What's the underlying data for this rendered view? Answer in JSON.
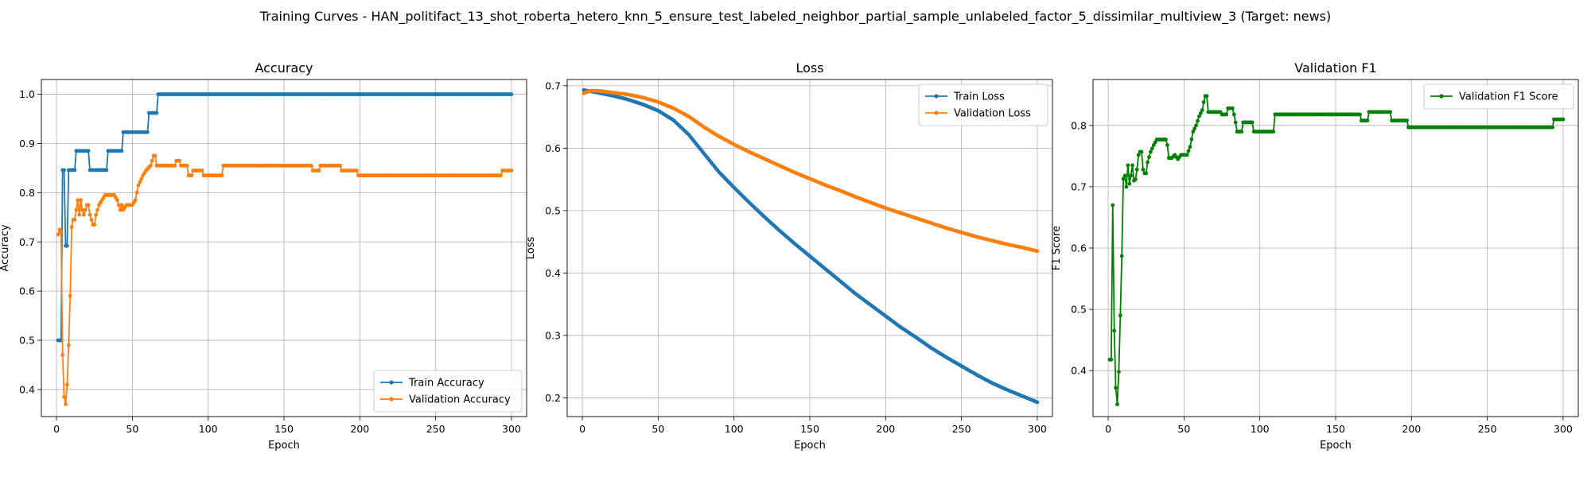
{
  "figure": {
    "title": "Training Curves - HAN_politifact_13_shot_roberta_hetero_knn_5_ensure_test_labeled_neighbor_partial_sample_unlabeled_factor_5_dissimilar_multiview_3 (Target: news)"
  },
  "chart_data": [
    {
      "type": "line",
      "title": "Accuracy",
      "xlabel": "Epoch",
      "ylabel": "Accuracy",
      "xlim": [
        -10,
        310
      ],
      "ylim": [
        0.345,
        1.03
      ],
      "xticks": [
        0,
        50,
        100,
        150,
        200,
        250,
        300
      ],
      "yticks": [
        0.4,
        0.5,
        0.6,
        0.7,
        0.8,
        0.9,
        1.0
      ],
      "ytick_labels": [
        "0.4",
        "0.5",
        "0.6",
        "0.7",
        "0.8",
        "0.9",
        "1.0"
      ],
      "grid": true,
      "legend_position": "lower-right",
      "series": [
        {
          "name": "Train Accuracy",
          "color": "#1f77b4",
          "points": [
            [
              1,
              0.5
            ],
            [
              3,
              0.5
            ],
            [
              4,
              0.846
            ],
            [
              5,
              0.846
            ],
            [
              6,
              0.692
            ],
            [
              7,
              0.692
            ],
            [
              8,
              0.846
            ],
            [
              12,
              0.846
            ],
            [
              13,
              0.885
            ],
            [
              21,
              0.885
            ],
            [
              22,
              0.846
            ],
            [
              33,
              0.846
            ],
            [
              34,
              0.885
            ],
            [
              43,
              0.885
            ],
            [
              44,
              0.923
            ],
            [
              60,
              0.923
            ],
            [
              61,
              0.962
            ],
            [
              66,
              0.962
            ],
            [
              67,
              1.0
            ],
            [
              300,
              1.0
            ]
          ]
        },
        {
          "name": "Validation Accuracy",
          "color": "#ff7f0e",
          "points": [
            [
              1,
              0.715
            ],
            [
              2,
              0.725
            ],
            [
              3,
              0.72
            ],
            [
              4,
              0.47
            ],
            [
              5,
              0.385
            ],
            [
              6,
              0.37
            ],
            [
              7,
              0.41
            ],
            [
              8,
              0.49
            ],
            [
              9,
              0.59
            ],
            [
              10,
              0.73
            ],
            [
              11,
              0.745
            ],
            [
              12,
              0.745
            ],
            [
              13,
              0.765
            ],
            [
              14,
              0.785
            ],
            [
              15,
              0.755
            ],
            [
              16,
              0.785
            ],
            [
              17,
              0.765
            ],
            [
              18,
              0.755
            ],
            [
              19,
              0.765
            ],
            [
              20,
              0.775
            ],
            [
              21,
              0.775
            ],
            [
              22,
              0.755
            ],
            [
              23,
              0.745
            ],
            [
              24,
              0.735
            ],
            [
              25,
              0.735
            ],
            [
              26,
              0.755
            ],
            [
              28,
              0.775
            ],
            [
              30,
              0.785
            ],
            [
              32,
              0.795
            ],
            [
              38,
              0.795
            ],
            [
              40,
              0.785
            ],
            [
              41,
              0.775
            ],
            [
              42,
              0.765
            ],
            [
              43,
              0.775
            ],
            [
              44,
              0.765
            ],
            [
              46,
              0.775
            ],
            [
              50,
              0.775
            ],
            [
              52,
              0.785
            ],
            [
              54,
              0.815
            ],
            [
              57,
              0.835
            ],
            [
              59,
              0.845
            ],
            [
              62,
              0.855
            ],
            [
              64,
              0.875
            ],
            [
              65,
              0.875
            ],
            [
              66,
              0.855
            ],
            [
              78,
              0.855
            ],
            [
              79,
              0.865
            ],
            [
              81,
              0.865
            ],
            [
              82,
              0.855
            ],
            [
              86,
              0.855
            ],
            [
              87,
              0.835
            ],
            [
              89,
              0.835
            ],
            [
              90,
              0.845
            ],
            [
              96,
              0.845
            ],
            [
              97,
              0.835
            ],
            [
              109,
              0.835
            ],
            [
              110,
              0.855
            ],
            [
              168,
              0.855
            ],
            [
              169,
              0.845
            ],
            [
              173,
              0.845
            ],
            [
              174,
              0.855
            ],
            [
              187,
              0.855
            ],
            [
              188,
              0.845
            ],
            [
              198,
              0.845
            ],
            [
              199,
              0.835
            ],
            [
              293,
              0.835
            ],
            [
              294,
              0.845
            ],
            [
              300,
              0.845
            ]
          ]
        }
      ]
    },
    {
      "type": "line",
      "title": "Loss",
      "xlabel": "Epoch",
      "ylabel": "Loss",
      "xlim": [
        -10,
        310
      ],
      "ylim": [
        0.17,
        0.71
      ],
      "xticks": [
        0,
        50,
        100,
        150,
        200,
        250,
        300
      ],
      "yticks": [
        0.2,
        0.3,
        0.4,
        0.5,
        0.6,
        0.7
      ],
      "ytick_labels": [
        "0.2",
        "0.3",
        "0.4",
        "0.5",
        "0.6",
        "0.7"
      ],
      "grid": true,
      "legend_position": "upper-right",
      "series": [
        {
          "name": "Train Loss",
          "color": "#1f77b4",
          "points": [
            [
              1,
              0.693
            ],
            [
              10,
              0.689
            ],
            [
              20,
              0.684
            ],
            [
              30,
              0.678
            ],
            [
              40,
              0.67
            ],
            [
              50,
              0.66
            ],
            [
              60,
              0.645
            ],
            [
              70,
              0.622
            ],
            [
              80,
              0.592
            ],
            [
              90,
              0.562
            ],
            [
              100,
              0.537
            ],
            [
              110,
              0.513
            ],
            [
              120,
              0.49
            ],
            [
              130,
              0.468
            ],
            [
              140,
              0.447
            ],
            [
              150,
              0.427
            ],
            [
              160,
              0.407
            ],
            [
              170,
              0.387
            ],
            [
              180,
              0.367
            ],
            [
              190,
              0.349
            ],
            [
              200,
              0.331
            ],
            [
              210,
              0.313
            ],
            [
              220,
              0.297
            ],
            [
              230,
              0.28
            ],
            [
              240,
              0.265
            ],
            [
              250,
              0.251
            ],
            [
              260,
              0.237
            ],
            [
              270,
              0.224
            ],
            [
              280,
              0.213
            ],
            [
              290,
              0.203
            ],
            [
              300,
              0.193
            ]
          ]
        },
        {
          "name": "Validation Loss",
          "color": "#ff7f0e",
          "points": [
            [
              1,
              0.688
            ],
            [
              5,
              0.692
            ],
            [
              10,
              0.692
            ],
            [
              20,
              0.689
            ],
            [
              30,
              0.686
            ],
            [
              40,
              0.681
            ],
            [
              50,
              0.674
            ],
            [
              60,
              0.664
            ],
            [
              70,
              0.651
            ],
            [
              80,
              0.634
            ],
            [
              90,
              0.619
            ],
            [
              100,
              0.606
            ],
            [
              110,
              0.594
            ],
            [
              120,
              0.583
            ],
            [
              130,
              0.572
            ],
            [
              140,
              0.561
            ],
            [
              150,
              0.551
            ],
            [
              160,
              0.541
            ],
            [
              170,
              0.532
            ],
            [
              180,
              0.522
            ],
            [
              190,
              0.513
            ],
            [
              200,
              0.504
            ],
            [
              210,
              0.496
            ],
            [
              220,
              0.488
            ],
            [
              230,
              0.48
            ],
            [
              240,
              0.472
            ],
            [
              250,
              0.465
            ],
            [
              260,
              0.458
            ],
            [
              270,
              0.452
            ],
            [
              280,
              0.446
            ],
            [
              290,
              0.441
            ],
            [
              300,
              0.435
            ]
          ]
        }
      ]
    },
    {
      "type": "line",
      "title": "Validation F1",
      "xlabel": "Epoch",
      "ylabel": "F1 Score",
      "xlim": [
        -10,
        310
      ],
      "ylim": [
        0.325,
        0.875
      ],
      "xticks": [
        0,
        50,
        100,
        150,
        200,
        250,
        300
      ],
      "yticks": [
        0.4,
        0.5,
        0.6,
        0.7,
        0.8
      ],
      "ytick_labels": [
        "0.4",
        "0.5",
        "0.6",
        "0.7",
        "0.8"
      ],
      "grid": true,
      "legend_position": "upper-right",
      "series": [
        {
          "name": "Validation F1 Score",
          "color": "#008000",
          "points": [
            [
              1,
              0.418
            ],
            [
              2,
              0.418
            ],
            [
              3,
              0.67
            ],
            [
              4,
              0.465
            ],
            [
              5,
              0.372
            ],
            [
              6,
              0.345
            ],
            [
              7,
              0.398
            ],
            [
              8,
              0.49
            ],
            [
              9,
              0.587
            ],
            [
              10,
              0.713
            ],
            [
              11,
              0.718
            ],
            [
              12,
              0.7
            ],
            [
              13,
              0.735
            ],
            [
              14,
              0.705
            ],
            [
              15,
              0.718
            ],
            [
              16,
              0.735
            ],
            [
              17,
              0.71
            ],
            [
              18,
              0.712
            ],
            [
              19,
              0.728
            ],
            [
              20,
              0.752
            ],
            [
              21,
              0.757
            ],
            [
              22,
              0.757
            ],
            [
              23,
              0.728
            ],
            [
              24,
              0.722
            ],
            [
              25,
              0.722
            ],
            [
              26,
              0.74
            ],
            [
              28,
              0.757
            ],
            [
              30,
              0.768
            ],
            [
              32,
              0.777
            ],
            [
              38,
              0.777
            ],
            [
              39,
              0.768
            ],
            [
              40,
              0.747
            ],
            [
              42,
              0.747
            ],
            [
              44,
              0.752
            ],
            [
              46,
              0.745
            ],
            [
              48,
              0.752
            ],
            [
              52,
              0.752
            ],
            [
              54,
              0.765
            ],
            [
              56,
              0.79
            ],
            [
              58,
              0.8
            ],
            [
              60,
              0.815
            ],
            [
              62,
              0.825
            ],
            [
              63,
              0.838
            ],
            [
              64,
              0.848
            ],
            [
              65,
              0.848
            ],
            [
              66,
              0.822
            ],
            [
              74,
              0.822
            ],
            [
              75,
              0.818
            ],
            [
              78,
              0.818
            ],
            [
              79,
              0.828
            ],
            [
              82,
              0.828
            ],
            [
              83,
              0.818
            ],
            [
              84,
              0.805
            ],
            [
              85,
              0.79
            ],
            [
              88,
              0.79
            ],
            [
              89,
              0.805
            ],
            [
              95,
              0.805
            ],
            [
              96,
              0.79
            ],
            [
              109,
              0.79
            ],
            [
              110,
              0.818
            ],
            [
              166,
              0.818
            ],
            [
              167,
              0.808
            ],
            [
              171,
              0.808
            ],
            [
              172,
              0.822
            ],
            [
              186,
              0.822
            ],
            [
              187,
              0.808
            ],
            [
              197,
              0.808
            ],
            [
              198,
              0.797
            ],
            [
              293,
              0.797
            ],
            [
              294,
              0.81
            ],
            [
              300,
              0.81
            ]
          ]
        }
      ]
    }
  ]
}
